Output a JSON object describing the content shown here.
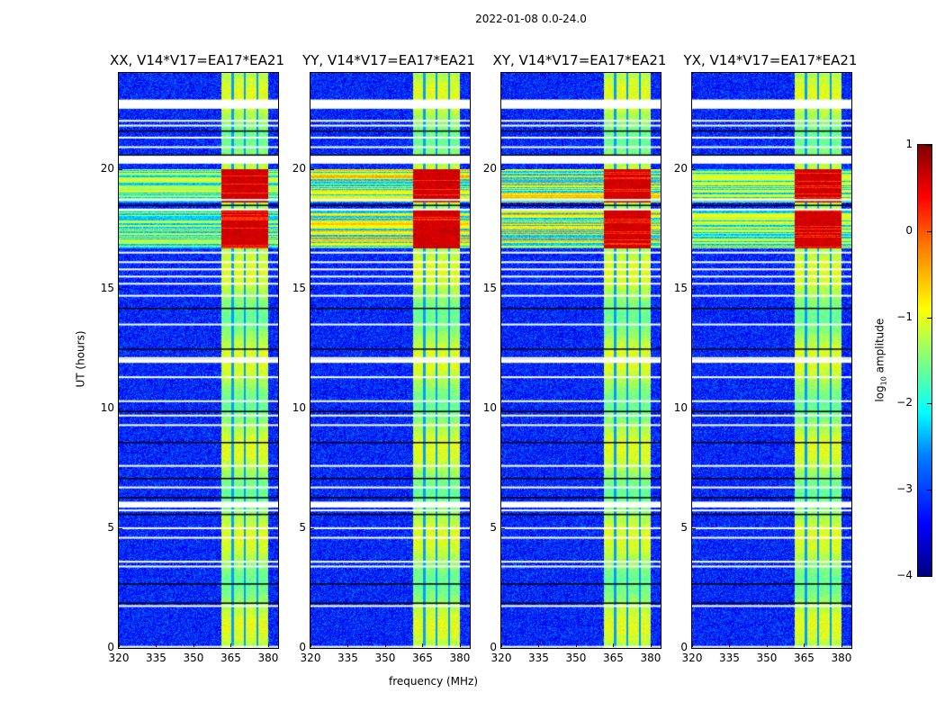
{
  "figure_title": "2022-01-08 0.0-24.0",
  "chart_data": {
    "type": "heatmap",
    "title": "2022-01-08 0.0-24.0",
    "xlabel": "frequency (MHz)",
    "ylabel": "UT (hours)",
    "xlim": [
      320,
      384
    ],
    "ylim": [
      0,
      24
    ],
    "xticks": [
      "320",
      "335",
      "350",
      "365",
      "380"
    ],
    "xtick_values": [
      320,
      335,
      350,
      365,
      380
    ],
    "yticks": [
      "0",
      "5",
      "10",
      "15",
      "20"
    ],
    "ytick_values": [
      0,
      5,
      10,
      15,
      20
    ],
    "panels": [
      {
        "title": "XX, V14*V17=EA17*EA21",
        "rfi_strength": 0.6
      },
      {
        "title": "YY, V14*V17=EA17*EA21",
        "rfi_strength": 1.0
      },
      {
        "title": "XY, V14*V17=EA17*EA21",
        "rfi_strength": 1.0
      },
      {
        "title": "YX, V14*V17=EA17*EA21",
        "rfi_strength": 0.7
      }
    ],
    "background_log_amp": -3.2,
    "band_mhz": [
      361,
      380
    ],
    "band_log_amp": -1.3,
    "rfi_hours": [
      [
        16.7,
        18.3
      ],
      [
        18.6,
        20.0
      ]
    ],
    "rfi_log_amp": 0.6,
    "flagged_hours": [
      0.05,
      1.75,
      3.4,
      3.6,
      4.6,
      5.0,
      5.74,
      5.9,
      6.07,
      6.7,
      7.6,
      9.3,
      9.7,
      10.3,
      11.3,
      12.0,
      12.1,
      13.5,
      14.7,
      15.2,
      15.5,
      15.8,
      16.1,
      16.5,
      18.3,
      18.7,
      20.25,
      20.4,
      20.55,
      20.9,
      21.3,
      21.8,
      22.0,
      22.55,
      22.7,
      22.85
    ],
    "dark_hours": [
      1.9,
      2.7,
      5.6,
      6.3,
      7.1,
      8.6,
      9.9,
      12.5,
      14.2,
      18.5,
      20.6,
      21.6
    ],
    "colorbar": {
      "label": "log10 amplitude",
      "label_main": "log",
      "label_sub": "10",
      "label_tail": " amplitude",
      "range": [
        -4,
        1
      ],
      "ticks": [
        "1",
        "0",
        "−1",
        "−2",
        "−3",
        "−4"
      ],
      "tick_values": [
        1,
        0,
        -1,
        -2,
        -3,
        -4
      ],
      "colormap": "jet"
    }
  }
}
